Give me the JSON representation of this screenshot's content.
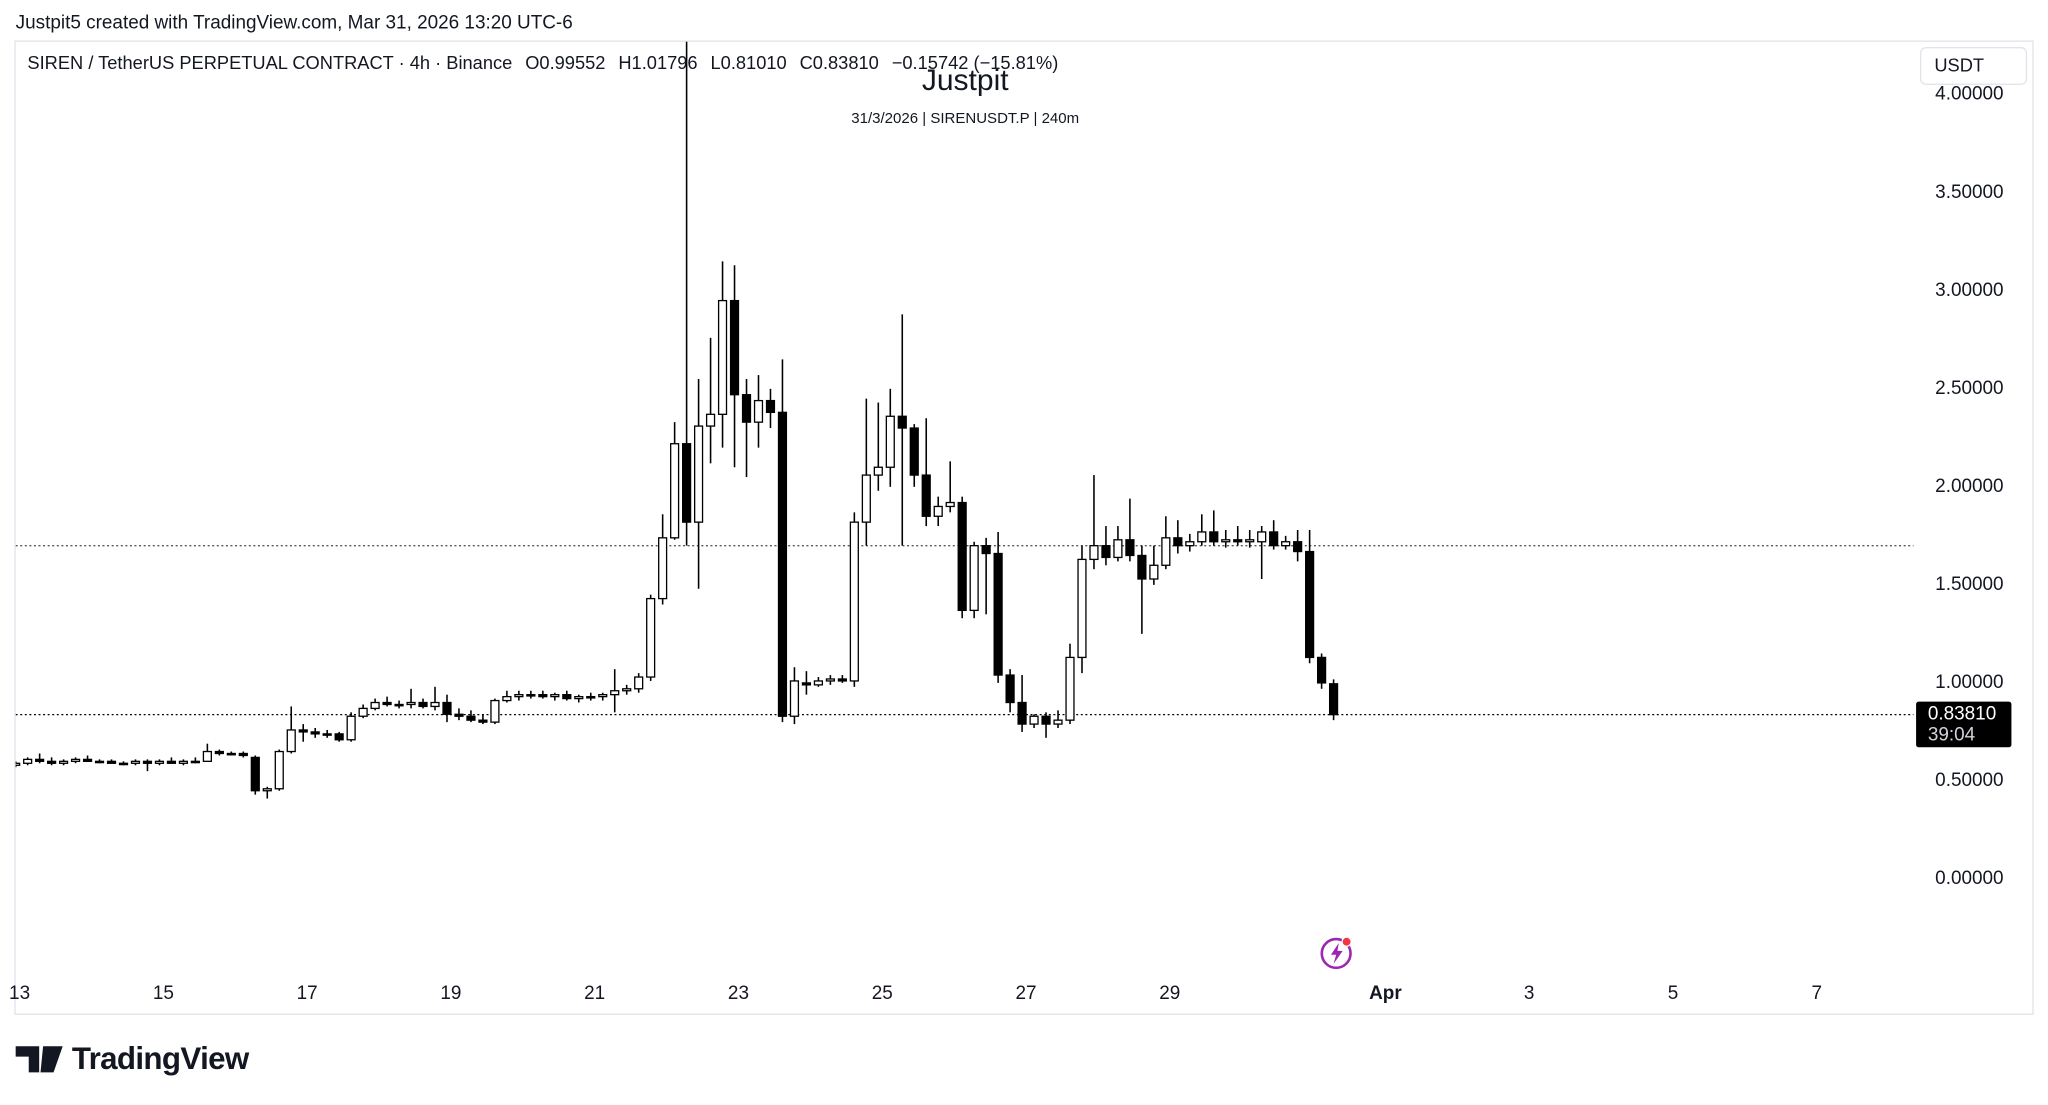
{
  "chart_data": {
    "type": "candlestick",
    "attribution": "Justpit5 created with TradingView.com, Mar 31, 2026 13:20 UTC-6",
    "legend": {
      "symbol": "SIREN / TetherUS PERPETUAL CONTRACT · 4h · Binance",
      "open": "O0.99552",
      "high": "H1.01796",
      "low": "L0.81010",
      "close": "C0.83810",
      "change": "−0.15742 (−15.81%)"
    },
    "watermark": "Justpit",
    "watermark_subtitle": "31/3/2026 | SIRENUSDT.P | 240m",
    "currency": "USDT",
    "last_price_label": "0.83810",
    "countdown": "39:04",
    "logo": "TradingView",
    "up_color": "#ffffff",
    "down_color": "#000000",
    "border_color": "#000000",
    "ohlc": [
      [
        0.58,
        0.6,
        0.57,
        0.59
      ],
      [
        0.59,
        0.62,
        0.58,
        0.61
      ],
      [
        0.61,
        0.64,
        0.59,
        0.6
      ],
      [
        0.6,
        0.62,
        0.58,
        0.59
      ],
      [
        0.59,
        0.61,
        0.58,
        0.6
      ],
      [
        0.6,
        0.62,
        0.59,
        0.61
      ],
      [
        0.61,
        0.63,
        0.6,
        0.6
      ],
      [
        0.6,
        0.61,
        0.59,
        0.6
      ],
      [
        0.6,
        0.61,
        0.59,
        0.59
      ],
      [
        0.59,
        0.6,
        0.58,
        0.59
      ],
      [
        0.59,
        0.61,
        0.58,
        0.6
      ],
      [
        0.6,
        0.61,
        0.55,
        0.59
      ],
      [
        0.59,
        0.61,
        0.58,
        0.6
      ],
      [
        0.6,
        0.62,
        0.59,
        0.59
      ],
      [
        0.59,
        0.61,
        0.58,
        0.6
      ],
      [
        0.6,
        0.62,
        0.59,
        0.6
      ],
      [
        0.6,
        0.69,
        0.6,
        0.65
      ],
      [
        0.65,
        0.66,
        0.63,
        0.64
      ],
      [
        0.64,
        0.65,
        0.63,
        0.64
      ],
      [
        0.64,
        0.65,
        0.62,
        0.63
      ],
      [
        0.62,
        0.63,
        0.43,
        0.45
      ],
      [
        0.45,
        0.47,
        0.41,
        0.46
      ],
      [
        0.46,
        0.66,
        0.45,
        0.65
      ],
      [
        0.65,
        0.88,
        0.64,
        0.76
      ],
      [
        0.76,
        0.79,
        0.7,
        0.75
      ],
      [
        0.75,
        0.77,
        0.72,
        0.74
      ],
      [
        0.74,
        0.76,
        0.72,
        0.74
      ],
      [
        0.74,
        0.75,
        0.7,
        0.71
      ],
      [
        0.71,
        0.85,
        0.7,
        0.83
      ],
      [
        0.83,
        0.89,
        0.82,
        0.87
      ],
      [
        0.87,
        0.92,
        0.86,
        0.9
      ],
      [
        0.9,
        0.93,
        0.88,
        0.89
      ],
      [
        0.89,
        0.91,
        0.87,
        0.89
      ],
      [
        0.89,
        0.97,
        0.87,
        0.9
      ],
      [
        0.9,
        0.92,
        0.87,
        0.88
      ],
      [
        0.88,
        0.98,
        0.86,
        0.9
      ],
      [
        0.9,
        0.94,
        0.8,
        0.84
      ],
      [
        0.84,
        0.87,
        0.81,
        0.83
      ],
      [
        0.83,
        0.86,
        0.8,
        0.81
      ],
      [
        0.81,
        0.84,
        0.79,
        0.8
      ],
      [
        0.8,
        0.92,
        0.79,
        0.91
      ],
      [
        0.91,
        0.96,
        0.9,
        0.93
      ],
      [
        0.93,
        0.96,
        0.91,
        0.94
      ],
      [
        0.94,
        0.96,
        0.92,
        0.94
      ],
      [
        0.94,
        0.96,
        0.92,
        0.93
      ],
      [
        0.93,
        0.95,
        0.91,
        0.94
      ],
      [
        0.94,
        0.96,
        0.91,
        0.92
      ],
      [
        0.92,
        0.94,
        0.9,
        0.93
      ],
      [
        0.93,
        0.95,
        0.91,
        0.93
      ],
      [
        0.93,
        0.95,
        0.91,
        0.94
      ],
      [
        0.94,
        1.07,
        0.85,
        0.96
      ],
      [
        0.96,
        0.99,
        0.94,
        0.97
      ],
      [
        0.97,
        1.05,
        0.95,
        1.03
      ],
      [
        1.03,
        1.45,
        1.01,
        1.43
      ],
      [
        1.43,
        1.86,
        1.4,
        1.74
      ],
      [
        1.74,
        2.33,
        1.73,
        2.22
      ],
      [
        2.22,
        4.3,
        1.7,
        1.82
      ],
      [
        1.82,
        2.55,
        1.48,
        2.31
      ],
      [
        2.31,
        2.76,
        2.12,
        2.37
      ],
      [
        2.37,
        3.15,
        2.2,
        2.95
      ],
      [
        2.95,
        3.13,
        2.1,
        2.47
      ],
      [
        2.47,
        2.55,
        2.05,
        2.33
      ],
      [
        2.33,
        2.57,
        2.2,
        2.44
      ],
      [
        2.44,
        2.5,
        2.3,
        2.38
      ],
      [
        2.38,
        2.65,
        0.8,
        0.83
      ],
      [
        0.83,
        1.08,
        0.79,
        1.01
      ],
      [
        1.0,
        1.06,
        0.94,
        0.99
      ],
      [
        0.99,
        1.03,
        0.98,
        1.01
      ],
      [
        1.01,
        1.04,
        0.99,
        1.02
      ],
      [
        1.02,
        1.04,
        1.0,
        1.01
      ],
      [
        1.01,
        1.87,
        0.98,
        1.82
      ],
      [
        1.82,
        2.45,
        1.7,
        2.06
      ],
      [
        2.06,
        2.43,
        1.98,
        2.1
      ],
      [
        2.1,
        2.5,
        2.0,
        2.36
      ],
      [
        2.36,
        2.88,
        1.7,
        2.3
      ],
      [
        2.3,
        2.32,
        2.0,
        2.06
      ],
      [
        2.06,
        2.35,
        1.8,
        1.85
      ],
      [
        1.85,
        1.95,
        1.8,
        1.9
      ],
      [
        1.9,
        2.13,
        1.87,
        1.92
      ],
      [
        1.92,
        1.95,
        1.33,
        1.37
      ],
      [
        1.37,
        1.72,
        1.33,
        1.7
      ],
      [
        1.7,
        1.74,
        1.35,
        1.66
      ],
      [
        1.66,
        1.77,
        1.0,
        1.04
      ],
      [
        1.04,
        1.07,
        0.85,
        0.9
      ],
      [
        0.9,
        1.04,
        0.75,
        0.79
      ],
      [
        0.79,
        0.84,
        0.77,
        0.83
      ],
      [
        0.83,
        0.85,
        0.72,
        0.79
      ],
      [
        0.79,
        0.86,
        0.77,
        0.81
      ],
      [
        0.81,
        1.2,
        0.79,
        1.13
      ],
      [
        1.13,
        1.7,
        1.05,
        1.63
      ],
      [
        1.63,
        2.06,
        1.58,
        1.7
      ],
      [
        1.7,
        1.8,
        1.6,
        1.64
      ],
      [
        1.64,
        1.8,
        1.62,
        1.73
      ],
      [
        1.73,
        1.94,
        1.62,
        1.65
      ],
      [
        1.65,
        1.7,
        1.25,
        1.53
      ],
      [
        1.53,
        1.7,
        1.5,
        1.6
      ],
      [
        1.6,
        1.85,
        1.58,
        1.74
      ],
      [
        1.74,
        1.83,
        1.66,
        1.7
      ],
      [
        1.7,
        1.76,
        1.67,
        1.72
      ],
      [
        1.72,
        1.86,
        1.7,
        1.77
      ],
      [
        1.77,
        1.88,
        1.7,
        1.72
      ],
      [
        1.72,
        1.78,
        1.69,
        1.73
      ],
      [
        1.73,
        1.8,
        1.7,
        1.72
      ],
      [
        1.72,
        1.78,
        1.69,
        1.73
      ],
      [
        1.72,
        1.8,
        1.53,
        1.77
      ],
      [
        1.77,
        1.83,
        1.68,
        1.7
      ],
      [
        1.7,
        1.75,
        1.68,
        1.72
      ],
      [
        1.72,
        1.78,
        1.62,
        1.67
      ],
      [
        1.67,
        1.78,
        1.1,
        1.13
      ],
      [
        1.13,
        1.15,
        0.97,
        1.0
      ],
      [
        0.99552,
        1.01796,
        0.8101,
        0.8381
      ]
    ],
    "hlines": [
      1.7
    ],
    "xlim": [
      0,
      158.4
    ],
    "xticks": [
      {
        "value": 0,
        "label": "13"
      },
      {
        "value": 12,
        "label": "15"
      },
      {
        "value": 24,
        "label": "17"
      },
      {
        "value": 36,
        "label": "19"
      },
      {
        "value": 48,
        "label": "21"
      },
      {
        "value": 60,
        "label": "23"
      },
      {
        "value": 72,
        "label": "25"
      },
      {
        "value": 84,
        "label": "27"
      },
      {
        "value": 96,
        "label": "29"
      },
      {
        "value": 114,
        "label": "Apr"
      },
      {
        "value": 126,
        "label": "3"
      },
      {
        "value": 138,
        "label": "5"
      },
      {
        "value": 150,
        "label": "7"
      }
    ],
    "ylim": [
      -0.48,
      4.27
    ],
    "yticks": [
      {
        "value": 0,
        "label": "0.00000"
      },
      {
        "value": 0.5,
        "label": "0.50000"
      },
      {
        "value": 1,
        "label": "1.00000"
      },
      {
        "value": 1.5,
        "label": "1.50000"
      },
      {
        "value": 2,
        "label": "2.00000"
      },
      {
        "value": 2.5,
        "label": "2.50000"
      },
      {
        "value": 3,
        "label": "3.00000"
      },
      {
        "value": 3.5,
        "label": "3.50000"
      },
      {
        "value": 4,
        "label": "4.00000"
      }
    ]
  }
}
